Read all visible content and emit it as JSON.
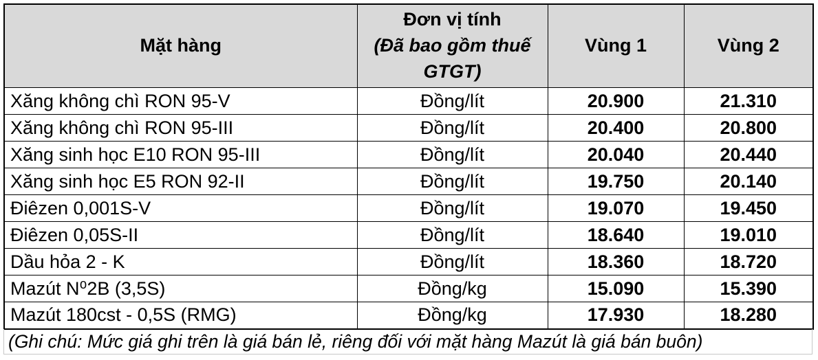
{
  "table": {
    "headers": {
      "item": "Mặt hàng",
      "unit_title": "Đơn vị tính",
      "unit_subtitle": "(Đã bao gồm thuế GTGT)",
      "region1": "Vùng 1",
      "region2": "Vùng 2"
    },
    "rows": [
      {
        "item": "Xăng không chì RON 95-V",
        "unit": "Đồng/lít",
        "region1": "20.900",
        "region2": "21.310"
      },
      {
        "item": "Xăng không chì RON 95-III",
        "unit": "Đồng/lít",
        "region1": "20.400",
        "region2": "20.800"
      },
      {
        "item": "Xăng sinh học E10 RON 95-III",
        "unit": "Đồng/lít",
        "region1": "20.040",
        "region2": "20.440"
      },
      {
        "item": "Xăng sinh học E5 RON 92-II",
        "unit": "Đồng/lít",
        "region1": "19.750",
        "region2": "20.140"
      },
      {
        "item": "Điêzen 0,001S-V",
        "unit": "Đồng/lít",
        "region1": "19.070",
        "region2": "19.450"
      },
      {
        "item": "Điêzen 0,05S-II",
        "unit": "Đồng/lít",
        "region1": "18.640",
        "region2": "19.010"
      },
      {
        "item": "Dầu hỏa 2 - K",
        "unit": "Đồng/lít",
        "region1": "18.360",
        "region2": "18.720"
      },
      {
        "item": "Mazút N⁰2B (3,5S)",
        "unit": "Đồng/kg",
        "region1": "15.090",
        "region2": "15.390"
      },
      {
        "item": "Mazút 180cst - 0,5S (RMG)",
        "unit": "Đồng/kg",
        "region1": "17.930",
        "region2": "18.280"
      }
    ],
    "note": "(Ghi chú: Mức giá ghi trên là giá bán lẻ, riêng đối với mặt hàng Mazút là giá bán buôn)",
    "colors": {
      "header_bg": "#d9d9d9",
      "table_border": "#000000",
      "note_border": "#c6c6c6",
      "text": "#000000"
    }
  }
}
